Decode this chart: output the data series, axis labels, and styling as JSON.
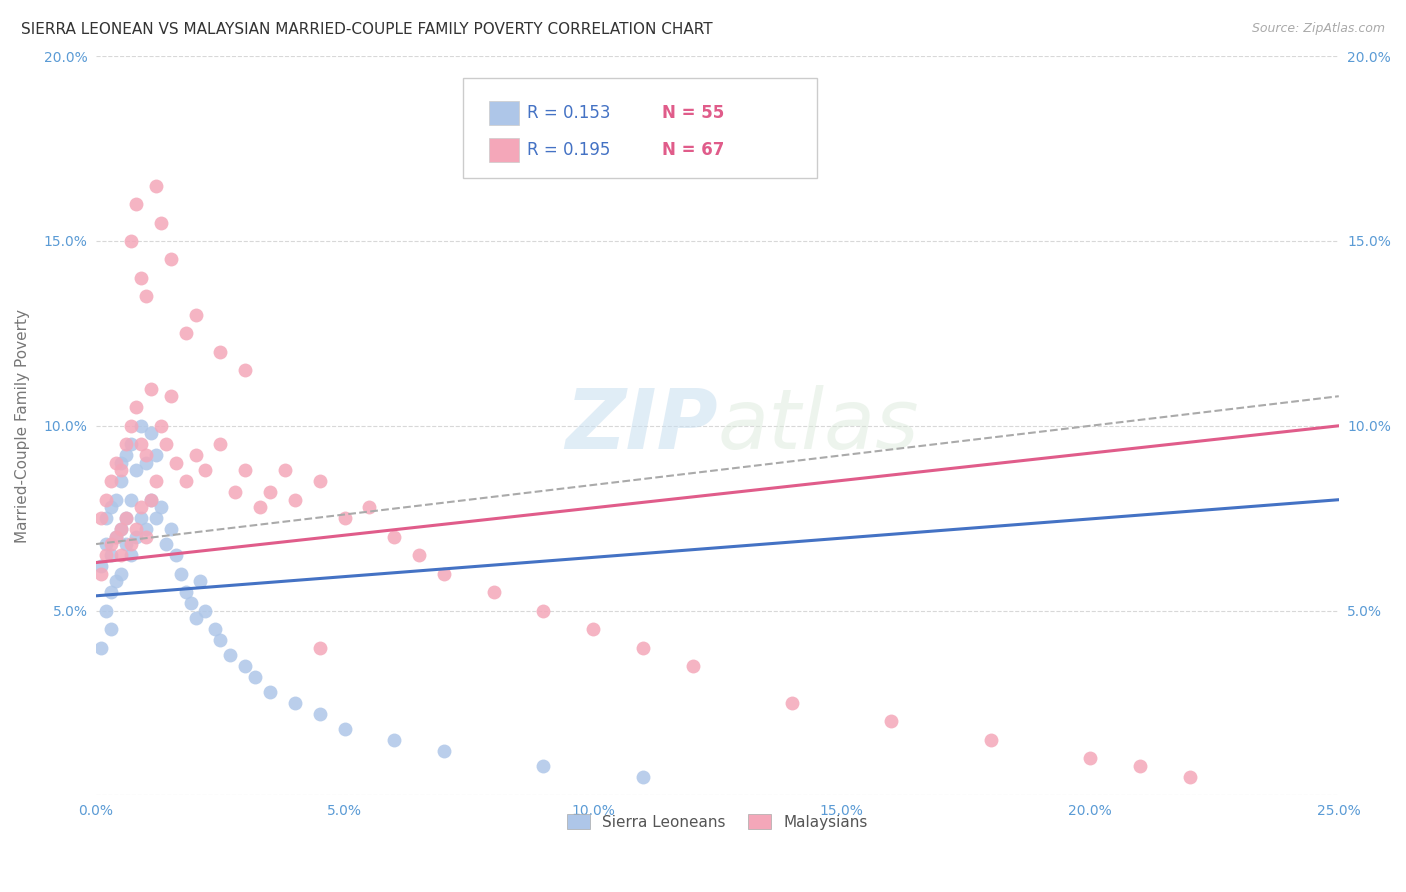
{
  "title": "SIERRA LEONEAN VS MALAYSIAN MARRIED-COUPLE FAMILY POVERTY CORRELATION CHART",
  "source": "Source: ZipAtlas.com",
  "ylabel": "Married-Couple Family Poverty",
  "xlim": [
    0.0,
    0.25
  ],
  "ylim": [
    0.0,
    0.2
  ],
  "xticks": [
    0.0,
    0.05,
    0.1,
    0.15,
    0.2,
    0.25
  ],
  "yticks": [
    0.0,
    0.05,
    0.1,
    0.15,
    0.2
  ],
  "xtick_labels": [
    "0.0%",
    "5.0%",
    "10.0%",
    "15.0%",
    "20.0%",
    "25.0%"
  ],
  "ytick_labels": [
    "",
    "5.0%",
    "10.0%",
    "15.0%",
    "20.0%"
  ],
  "sierra_R": 0.153,
  "sierra_N": 55,
  "malay_R": 0.195,
  "malay_N": 67,
  "background_color": "#ffffff",
  "grid_color": "#d8d8d8",
  "sierra_color": "#aec6e8",
  "sierra_line_color": "#4472c4",
  "malay_color": "#f4a7b9",
  "malay_line_color": "#e05c8a",
  "dash_line_color": "#aaaaaa",
  "title_color": "#333333",
  "axis_label_color": "#777777",
  "tick_color": "#5b9bd5",
  "legend_R_color": "#4472c4",
  "legend_N_color": "#e05c8a",
  "watermark": "ZIPatlas",
  "sierra_x": [
    0.001,
    0.001,
    0.002,
    0.002,
    0.002,
    0.003,
    0.003,
    0.003,
    0.003,
    0.004,
    0.004,
    0.004,
    0.005,
    0.005,
    0.005,
    0.005,
    0.006,
    0.006,
    0.006,
    0.007,
    0.007,
    0.007,
    0.008,
    0.008,
    0.009,
    0.009,
    0.01,
    0.01,
    0.011,
    0.011,
    0.012,
    0.012,
    0.013,
    0.014,
    0.015,
    0.016,
    0.017,
    0.018,
    0.019,
    0.02,
    0.021,
    0.022,
    0.024,
    0.025,
    0.027,
    0.03,
    0.032,
    0.035,
    0.04,
    0.045,
    0.05,
    0.06,
    0.07,
    0.09,
    0.11
  ],
  "sierra_y": [
    0.04,
    0.062,
    0.05,
    0.068,
    0.075,
    0.055,
    0.065,
    0.078,
    0.045,
    0.07,
    0.08,
    0.058,
    0.06,
    0.072,
    0.085,
    0.09,
    0.068,
    0.075,
    0.092,
    0.065,
    0.08,
    0.095,
    0.07,
    0.088,
    0.075,
    0.1,
    0.072,
    0.09,
    0.08,
    0.098,
    0.075,
    0.092,
    0.078,
    0.068,
    0.072,
    0.065,
    0.06,
    0.055,
    0.052,
    0.048,
    0.058,
    0.05,
    0.045,
    0.042,
    0.038,
    0.035,
    0.032,
    0.028,
    0.025,
    0.022,
    0.018,
    0.015,
    0.012,
    0.008,
    0.005
  ],
  "malay_x": [
    0.001,
    0.001,
    0.002,
    0.002,
    0.003,
    0.003,
    0.004,
    0.004,
    0.005,
    0.005,
    0.005,
    0.006,
    0.006,
    0.007,
    0.007,
    0.008,
    0.008,
    0.009,
    0.009,
    0.01,
    0.01,
    0.011,
    0.011,
    0.012,
    0.013,
    0.014,
    0.015,
    0.016,
    0.018,
    0.02,
    0.022,
    0.025,
    0.028,
    0.03,
    0.033,
    0.035,
    0.038,
    0.04,
    0.045,
    0.05,
    0.055,
    0.06,
    0.065,
    0.07,
    0.08,
    0.09,
    0.1,
    0.11,
    0.12,
    0.14,
    0.16,
    0.18,
    0.2,
    0.21,
    0.22,
    0.007,
    0.008,
    0.009,
    0.01,
    0.012,
    0.013,
    0.015,
    0.018,
    0.02,
    0.025,
    0.03,
    0.045
  ],
  "malay_y": [
    0.06,
    0.075,
    0.065,
    0.08,
    0.068,
    0.085,
    0.07,
    0.09,
    0.065,
    0.072,
    0.088,
    0.075,
    0.095,
    0.068,
    0.1,
    0.072,
    0.105,
    0.078,
    0.095,
    0.07,
    0.092,
    0.08,
    0.11,
    0.085,
    0.1,
    0.095,
    0.108,
    0.09,
    0.085,
    0.092,
    0.088,
    0.095,
    0.082,
    0.088,
    0.078,
    0.082,
    0.088,
    0.08,
    0.085,
    0.075,
    0.078,
    0.07,
    0.065,
    0.06,
    0.055,
    0.05,
    0.045,
    0.04,
    0.035,
    0.025,
    0.02,
    0.015,
    0.01,
    0.008,
    0.005,
    0.15,
    0.16,
    0.14,
    0.135,
    0.165,
    0.155,
    0.145,
    0.125,
    0.13,
    0.12,
    0.115,
    0.04
  ],
  "sierra_line_x0": 0.0,
  "sierra_line_y0": 0.054,
  "sierra_line_x1": 0.25,
  "sierra_line_y1": 0.08,
  "malay_line_x0": 0.0,
  "malay_line_y0": 0.063,
  "malay_line_x1": 0.25,
  "malay_line_y1": 0.1,
  "dash_line_x0": 0.0,
  "dash_line_y0": 0.068,
  "dash_line_x1": 0.25,
  "dash_line_y1": 0.108
}
